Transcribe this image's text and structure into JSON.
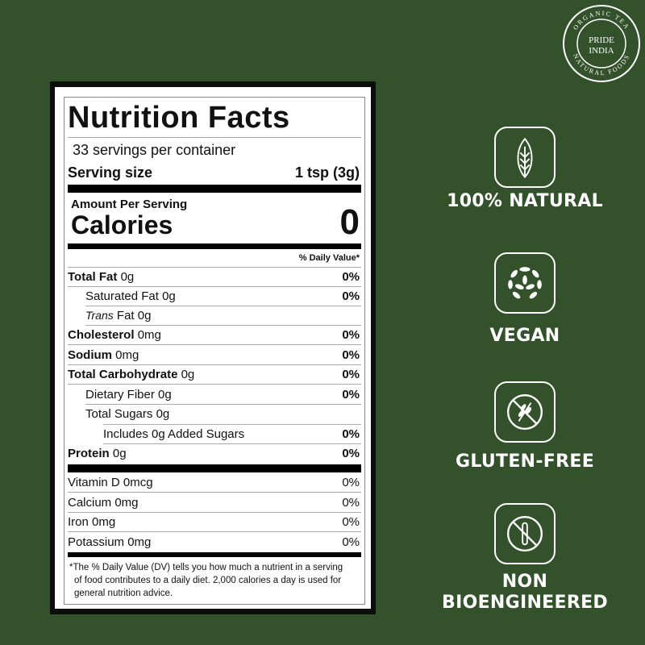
{
  "brand": {
    "logo_text": [
      "ORGANIC TEA",
      "PRIDE",
      "INDIA",
      "NATURAL FOODS"
    ]
  },
  "label": {
    "title": "Nutrition Facts",
    "servings": "33 servings per container",
    "serving_size_label": "Serving size",
    "serving_size_value": "1 tsp (3g)",
    "amount_per_serving": "Amount Per Serving",
    "calories_label": "Calories",
    "calories_value": "0",
    "dv_header": "% Daily Value*",
    "rows": [
      {
        "name": "Total Fat",
        "amount": "0g",
        "dv": "0%"
      },
      {
        "name": "Saturated Fat",
        "amount": "0g",
        "dv": "0%"
      },
      {
        "name": "Trans",
        "amount": "Fat 0g",
        "dv": ""
      },
      {
        "name": "Cholesterol",
        "amount": "0mg",
        "dv": "0%"
      },
      {
        "name": "Sodium",
        "amount": "0mg",
        "dv": "0%"
      },
      {
        "name": "Total Carbohydrate",
        "amount": "0g",
        "dv": "0%"
      },
      {
        "name": "Dietary Fiber",
        "amount": "0g",
        "dv": "0%"
      },
      {
        "name": "Total Sugars",
        "amount": "0g",
        "dv": ""
      },
      {
        "name": "Includes 0g Added Sugars",
        "amount": "",
        "dv": "0%"
      },
      {
        "name": "Protein",
        "amount": "0g",
        "dv": "0%"
      }
    ],
    "vitamins": [
      {
        "name": "Vitamin D 0mcg",
        "dv": "0%"
      },
      {
        "name": "Calcium 0mg",
        "dv": "0%"
      },
      {
        "name": "Iron 0mg",
        "dv": "0%"
      },
      {
        "name": "Potassium 0mg",
        "dv": "0%"
      }
    ],
    "footnote": "*The % Daily Value (DV) tells you how much a nutrient in a serving of food contributes to a daily diet. 2,000 calories a day is used for general nutrition advice."
  },
  "badges": [
    {
      "icon": "leaf-icon",
      "label": "100% NATURAL"
    },
    {
      "icon": "vegan-leaves-icon",
      "label": "VEGAN"
    },
    {
      "icon": "no-wheat-icon",
      "label": "GLUTEN-FREE"
    },
    {
      "icon": "no-test-tube-icon",
      "label": "NON BIOENGINEERED"
    }
  ],
  "colors": {
    "background": "#33512a",
    "label_bg": "#ffffff",
    "frame": "#0d0d0d"
  }
}
